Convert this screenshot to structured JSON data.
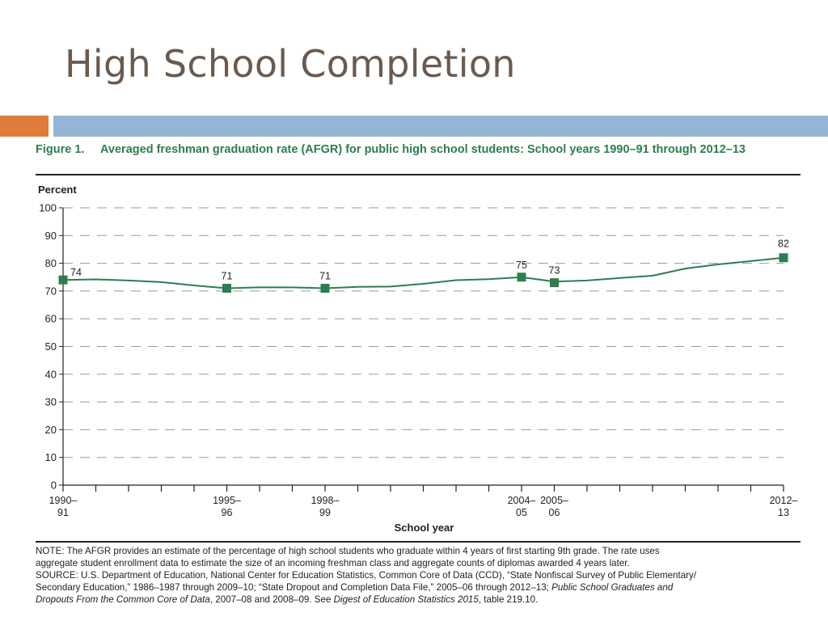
{
  "slide": {
    "title": "High School Completion",
    "accent_orange": "#e07b3c",
    "accent_blue": "#94b6d4"
  },
  "figure": {
    "label": "Figure 1.",
    "title": "Averaged freshman graduation rate (AFGR) for public high school students: School years 1990–91 through 2012–13"
  },
  "chart_data": {
    "type": "line",
    "ylabel": "Percent",
    "xlabel": "School year",
    "ylim": [
      0,
      100
    ],
    "yticks": [
      0,
      10,
      20,
      30,
      40,
      50,
      60,
      70,
      80,
      90,
      100
    ],
    "grid": true,
    "line_color": "#2e7d4f",
    "x_ticks": [
      {
        "index": 0,
        "label": [
          "1990–",
          "91"
        ]
      },
      {
        "index": 5,
        "label": [
          "1995–",
          "96"
        ]
      },
      {
        "index": 8,
        "label": [
          "1998–",
          "99"
        ]
      },
      {
        "index": 14,
        "label": [
          "2004–",
          "05"
        ]
      },
      {
        "index": 15,
        "label": [
          "2005–",
          "06"
        ]
      },
      {
        "index": 22,
        "label": [
          "2012–",
          "13"
        ]
      }
    ],
    "series": [
      {
        "values": [
          74,
          74.2,
          73.8,
          73.2,
          72,
          71,
          71.3,
          71.3,
          71,
          71.5,
          71.6,
          72.6,
          73.9,
          74.3,
          75,
          73.4,
          73.8,
          74.7,
          75.5,
          78.1,
          79.6,
          80.8,
          82
        ],
        "markers": [
          {
            "index": 0,
            "value": 74,
            "label": "74"
          },
          {
            "index": 5,
            "value": 71,
            "label": "71"
          },
          {
            "index": 8,
            "value": 71,
            "label": "71"
          },
          {
            "index": 14,
            "value": 75,
            "label": "75"
          },
          {
            "index": 15,
            "value": 73,
            "label": "73"
          },
          {
            "index": 22,
            "value": 82,
            "label": "82"
          }
        ]
      }
    ]
  },
  "note": {
    "line1": "NOTE: The AFGR provides an estimate of the percentage of high school students who graduate within 4 years of first starting 9th grade. The rate uses",
    "line2": "aggregate student enrollment data to estimate the size of an incoming freshman class and aggregate counts of diplomas awarded 4 years later.",
    "line3": "SOURCE: U.S. Department of Education, National Center for Education Statistics, Common Core of Data (CCD), “State Nonfiscal Survey of Public Elementary/",
    "line4_a": "Secondary Education,” 1986–1987 through 2009–10; “State Dropout and Completion Data File,” 2005–06 through 2012–13; ",
    "line4_b": "Public School Graduates and",
    "line5_a": "Dropouts From the Common Core of Data",
    "line5_b": ", 2007–08 and 2008–09. See ",
    "line5_c": "Digest of Education Statistics 2015",
    "line5_d": ", table 219.10."
  }
}
